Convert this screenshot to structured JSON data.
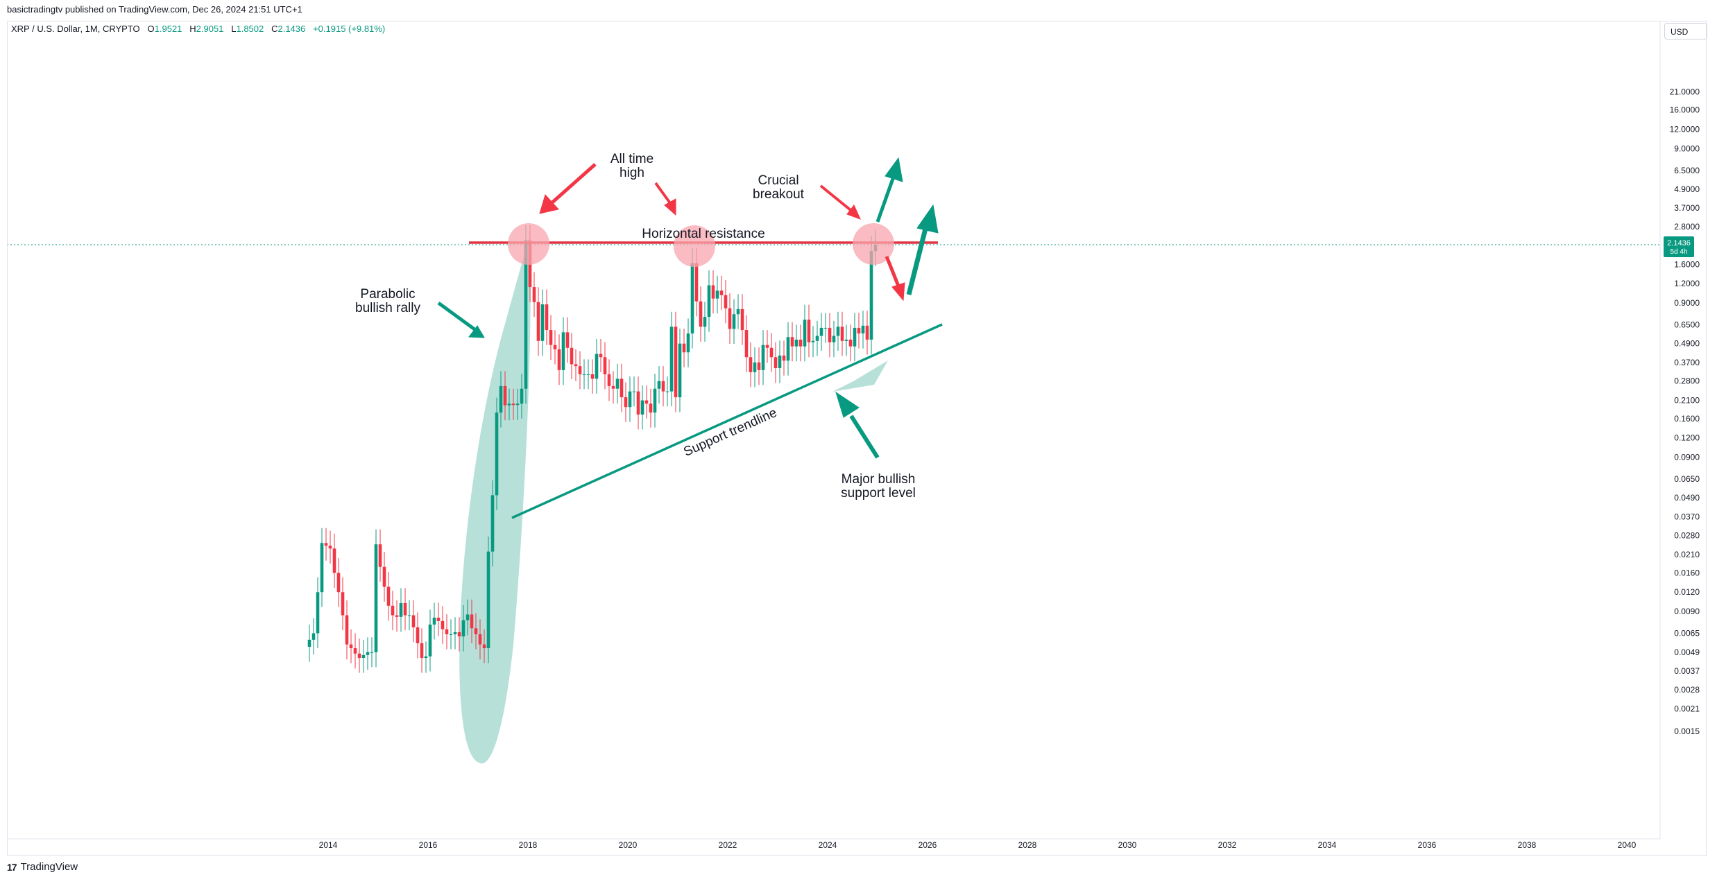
{
  "header": {
    "publisher": "basictradingtv published on TradingView.com, Dec 26, 2024 21:51 UTC+1",
    "symbol": "XRP / U.S. Dollar, 1M, CRYPTO",
    "open_label": "O",
    "open": "1.9521",
    "high_label": "H",
    "high": "2.9051",
    "low_label": "L",
    "low": "1.8502",
    "close_label": "C",
    "close": "2.1436",
    "change": "+0.1915 (+9.81%)",
    "currency": "USD"
  },
  "footer": {
    "logo_text": "TradingView",
    "logo_mark": "17"
  },
  "colors": {
    "up": "#089981",
    "down": "#f23645",
    "ellipse": "#9fd6cc",
    "circle": "#f8a5ad",
    "resistance": "#e03545"
  },
  "price_tag": {
    "value": "2.1436",
    "countdown": "5d 4h"
  },
  "chart_data": {
    "type": "candlestick",
    "scale": "log",
    "ylim": [
      0.0012,
      28
    ],
    "xlim": [
      2012.0,
      2041.3
    ],
    "y_ticks": [
      "21.0000",
      "16.0000",
      "12.0000",
      "9.0000",
      "6.5000",
      "4.9000",
      "3.7000",
      "2.8000",
      "2.1436",
      "1.6000",
      "1.2000",
      "0.9000",
      "0.6500",
      "0.4900",
      "0.3700",
      "0.2800",
      "0.2100",
      "0.1600",
      "0.1200",
      "0.0900",
      "0.0650",
      "0.0490",
      "0.0370",
      "0.0280",
      "0.0210",
      "0.0160",
      "0.0120",
      "0.0090",
      "0.0065",
      "0.0049",
      "0.0037",
      "0.0028",
      "0.0021",
      "0.0015"
    ],
    "x_ticks": [
      "2014",
      "2016",
      "2018",
      "2020",
      "2022",
      "2024",
      "2026",
      "2028",
      "2030",
      "2032",
      "2034",
      "2036",
      "2038",
      "2040"
    ],
    "candles_monthly_close": [
      [
        "2013-08",
        0.0059
      ],
      [
        "2013-09",
        0.0065
      ],
      [
        "2013-10",
        0.012
      ],
      [
        "2013-11",
        0.025
      ],
      [
        "2013-12",
        0.024
      ],
      [
        "2014-01",
        0.023
      ],
      [
        "2014-02",
        0.016
      ],
      [
        "2014-03",
        0.012
      ],
      [
        "2014-04",
        0.0085
      ],
      [
        "2014-05",
        0.0055
      ],
      [
        "2014-06",
        0.0052
      ],
      [
        "2014-07",
        0.0048
      ],
      [
        "2014-08",
        0.0045
      ],
      [
        "2014-09",
        0.0047
      ],
      [
        "2014-10",
        0.0049
      ],
      [
        "2014-11",
        0.0049
      ],
      [
        "2014-12",
        0.0245
      ],
      [
        "2015-01",
        0.0175
      ],
      [
        "2015-02",
        0.013
      ],
      [
        "2015-03",
        0.0098
      ],
      [
        "2015-04",
        0.0085
      ],
      [
        "2015-05",
        0.0083
      ],
      [
        "2015-06",
        0.0102
      ],
      [
        "2015-07",
        0.0085
      ],
      [
        "2015-08",
        0.0085
      ],
      [
        "2015-09",
        0.0071
      ],
      [
        "2015-10",
        0.0056
      ],
      [
        "2015-11",
        0.0045
      ],
      [
        "2015-12",
        0.0046
      ],
      [
        "2016-01",
        0.0074
      ],
      [
        "2016-02",
        0.0082
      ],
      [
        "2016-03",
        0.0078
      ],
      [
        "2016-04",
        0.0069
      ],
      [
        "2016-05",
        0.0064
      ],
      [
        "2016-06",
        0.0064
      ],
      [
        "2016-07",
        0.0066
      ],
      [
        "2016-08",
        0.0062
      ],
      [
        "2016-09",
        0.0079
      ],
      [
        "2016-10",
        0.0086
      ],
      [
        "2016-11",
        0.007
      ],
      [
        "2016-12",
        0.0064
      ],
      [
        "2017-01",
        0.0055
      ],
      [
        "2017-02",
        0.0052
      ],
      [
        "2017-03",
        0.022
      ],
      [
        "2017-04",
        0.051
      ],
      [
        "2017-05",
        0.175
      ],
      [
        "2017-06",
        0.26
      ],
      [
        "2017-07",
        0.195
      ],
      [
        "2017-08",
        0.2
      ],
      [
        "2017-09",
        0.196
      ],
      [
        "2017-10",
        0.2
      ],
      [
        "2017-11",
        0.25
      ],
      [
        "2017-12",
        2.29
      ],
      [
        "2018-01",
        1.14
      ],
      [
        "2018-02",
        0.91
      ],
      [
        "2018-03",
        0.51
      ],
      [
        "2018-04",
        0.88
      ],
      [
        "2018-05",
        0.6
      ],
      [
        "2018-06",
        0.48
      ],
      [
        "2018-07",
        0.45
      ],
      [
        "2018-08",
        0.33
      ],
      [
        "2018-09",
        0.58
      ],
      [
        "2018-10",
        0.46
      ],
      [
        "2018-11",
        0.36
      ],
      [
        "2018-12",
        0.35
      ],
      [
        "2019-01",
        0.31
      ],
      [
        "2019-02",
        0.31
      ],
      [
        "2019-03",
        0.31
      ],
      [
        "2019-04",
        0.29
      ],
      [
        "2019-05",
        0.42
      ],
      [
        "2019-06",
        0.4
      ],
      [
        "2019-07",
        0.31
      ],
      [
        "2019-08",
        0.26
      ],
      [
        "2019-09",
        0.25
      ],
      [
        "2019-10",
        0.29
      ],
      [
        "2019-11",
        0.22
      ],
      [
        "2019-12",
        0.19
      ],
      [
        "2020-01",
        0.24
      ],
      [
        "2020-02",
        0.24
      ],
      [
        "2020-03",
        0.17
      ],
      [
        "2020-04",
        0.21
      ],
      [
        "2020-05",
        0.2
      ],
      [
        "2020-06",
        0.175
      ],
      [
        "2020-07",
        0.25
      ],
      [
        "2020-08",
        0.28
      ],
      [
        "2020-09",
        0.24
      ],
      [
        "2020-10",
        0.24
      ],
      [
        "2020-11",
        0.63
      ],
      [
        "2020-12",
        0.22
      ],
      [
        "2021-01",
        0.49
      ],
      [
        "2021-02",
        0.43
      ],
      [
        "2021-03",
        0.57
      ],
      [
        "2021-04",
        1.63
      ],
      [
        "2021-05",
        0.92
      ],
      [
        "2021-06",
        0.63
      ],
      [
        "2021-07",
        0.73
      ],
      [
        "2021-08",
        1.17
      ],
      [
        "2021-09",
        0.96
      ],
      [
        "2021-10",
        1.08
      ],
      [
        "2021-11",
        1.01
      ],
      [
        "2021-12",
        0.83
      ],
      [
        "2022-01",
        0.61
      ],
      [
        "2022-02",
        0.76
      ],
      [
        "2022-03",
        0.82
      ],
      [
        "2022-04",
        0.6
      ],
      [
        "2022-05",
        0.4
      ],
      [
        "2022-06",
        0.32
      ],
      [
        "2022-07",
        0.37
      ],
      [
        "2022-08",
        0.33
      ],
      [
        "2022-09",
        0.48
      ],
      [
        "2022-10",
        0.46
      ],
      [
        "2022-11",
        0.4
      ],
      [
        "2022-12",
        0.34
      ],
      [
        "2023-01",
        0.41
      ],
      [
        "2023-02",
        0.38
      ],
      [
        "2023-03",
        0.54
      ],
      [
        "2023-04",
        0.47
      ],
      [
        "2023-05",
        0.52
      ],
      [
        "2023-06",
        0.47
      ],
      [
        "2023-07",
        0.7
      ],
      [
        "2023-08",
        0.5
      ],
      [
        "2023-09",
        0.51
      ],
      [
        "2023-10",
        0.55
      ],
      [
        "2023-11",
        0.62
      ],
      [
        "2023-12",
        0.62
      ],
      [
        "2024-01",
        0.5
      ],
      [
        "2024-02",
        0.55
      ],
      [
        "2024-03",
        0.63
      ],
      [
        "2024-04",
        0.51
      ],
      [
        "2024-05",
        0.52
      ],
      [
        "2024-06",
        0.47
      ],
      [
        "2024-07",
        0.62
      ],
      [
        "2024-08",
        0.57
      ],
      [
        "2024-09",
        0.64
      ],
      [
        "2024-10",
        0.52
      ],
      [
        "2024-11",
        1.95
      ],
      [
        "2024-12",
        2.1436
      ]
    ]
  },
  "annotations": {
    "all_time_high": [
      "All time",
      "high"
    ],
    "crucial_breakout": [
      "Crucial",
      "breakout"
    ],
    "horizontal_resistance": "Horizontal resistance",
    "parabolic": [
      "Parabolic",
      "bullish rally"
    ],
    "support_trendline": "Support trendline",
    "major_support": [
      "Major bullish",
      "support level"
    ]
  }
}
